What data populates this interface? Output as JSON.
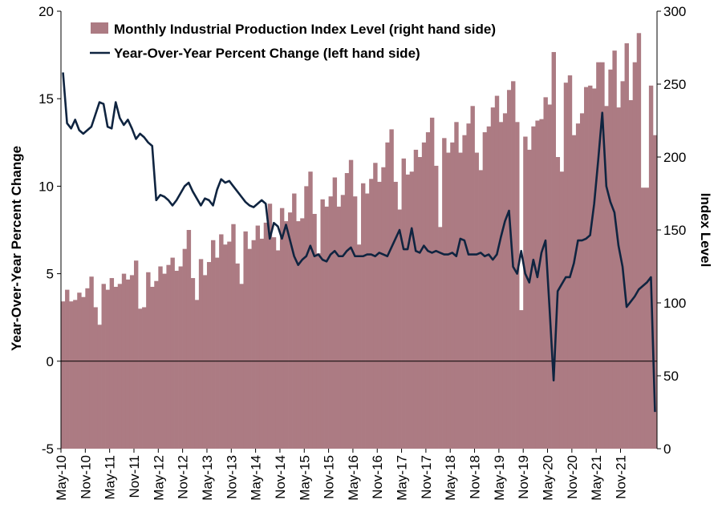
{
  "colors": {
    "bar": "#ac7b83",
    "line": "#0f2440"
  },
  "chart_data": {
    "type": "bar+line",
    "legend": [
      {
        "label": "Monthly Industrial Production Index Level (right hand side)",
        "kind": "bar"
      },
      {
        "label": "Year-Over-Year Percent Change (left hand side)",
        "kind": "line"
      }
    ],
    "legend_position": "top-left",
    "ylabel_left": "Year-Over-Year Percent Change",
    "ylabel_right": "Index Level",
    "ylim_left": [
      -5,
      20
    ],
    "ylim_right": [
      0,
      300
    ],
    "yticks_left": [
      "-5",
      "0",
      "5",
      "10",
      "15",
      "20"
    ],
    "yticks_right": [
      "0",
      "50",
      "100",
      "150",
      "200",
      "250",
      "300"
    ],
    "x_tick_labels": [
      "May-10",
      "Nov-10",
      "May-11",
      "Nov-11",
      "May-12",
      "Nov-12",
      "May-13",
      "Nov-13",
      "May-14",
      "Nov-14",
      "May-15",
      "Nov-15",
      "May-16",
      "Nov-16",
      "May-17",
      "Nov-17",
      "May-18",
      "Nov-18",
      "May-19",
      "Nov-19",
      "May-20",
      "Nov-20",
      "May-21",
      "Nov-21"
    ],
    "grid": false,
    "series": [
      {
        "name": "Monthly Industrial Production Index Level (right hand side)",
        "type": "bar",
        "values": [
          101,
          109,
          101,
          102,
          107,
          104,
          110,
          118,
          97,
          85,
          113,
          109,
          117,
          111,
          113,
          120,
          116,
          119,
          129,
          96,
          97,
          121,
          111,
          115,
          125,
          120,
          126,
          131,
          122,
          125,
          137,
          150,
          117,
          102,
          130,
          119,
          128,
          143,
          131,
          147,
          140,
          142,
          154,
          127,
          113,
          149,
          137,
          143,
          153,
          144,
          155,
          168,
          145,
          136,
          165,
          156,
          162,
          175,
          156,
          158,
          180,
          190,
          161,
          134,
          171,
          166,
          173,
          186,
          166,
          174,
          189,
          198,
          173,
          140,
          182,
          175,
          185,
          196,
          183,
          193,
          210,
          219,
          183,
          164,
          199,
          188,
          190,
          205,
          200,
          210,
          217,
          227,
          194,
          152,
          213,
          203,
          210,
          224,
          203,
          215,
          223,
          235,
          203,
          191,
          217,
          221,
          234,
          242,
          224,
          230,
          246,
          252,
          224,
          95,
          214,
          205,
          221,
          225,
          226,
          241,
          236,
          272,
          200,
          190,
          251,
          256,
          215,
          223,
          230,
          248,
          249,
          247,
          265,
          265,
          235,
          260,
          273,
          234,
          252,
          278,
          239,
          265,
          285,
          179,
          179,
          249,
          215
        ],
        "note_x_start": "May-10"
      },
      {
        "name": "Year-Over-Year Percent Change (left hand side)",
        "type": "line",
        "values": [
          16.5,
          13.6,
          13.3,
          13.8,
          13.2,
          13.0,
          13.2,
          13.4,
          14.1,
          14.8,
          14.7,
          13.4,
          13.3,
          14.8,
          13.9,
          13.5,
          13.8,
          13.3,
          12.7,
          13.0,
          12.8,
          12.5,
          12.3,
          9.2,
          9.5,
          9.4,
          9.2,
          8.9,
          9.2,
          9.6,
          10.0,
          10.2,
          9.7,
          9.3,
          8.9,
          9.3,
          9.2,
          8.9,
          9.8,
          10.4,
          10.2,
          10.3,
          10.0,
          9.7,
          9.4,
          9.1,
          8.9,
          8.8,
          9.0,
          9.2,
          9.0,
          7.0,
          7.9,
          7.7,
          7.0,
          7.8,
          6.9,
          6.0,
          5.5,
          5.8,
          6.0,
          6.6,
          6.0,
          6.1,
          5.8,
          5.7,
          6.1,
          6.3,
          6.0,
          6.0,
          6.3,
          6.5,
          6.0,
          6.0,
          6.0,
          6.1,
          6.1,
          6.0,
          6.2,
          6.1,
          6.0,
          6.5,
          7.0,
          7.5,
          6.4,
          6.4,
          7.6,
          6.3,
          6.2,
          6.6,
          6.3,
          6.2,
          6.3,
          6.2,
          6.1,
          6.1,
          6.2,
          6.0,
          7.0,
          6.9,
          6.1,
          6.1,
          6.1,
          6.2,
          6.0,
          6.1,
          5.8,
          6.1,
          7.1,
          8.0,
          8.6,
          5.4,
          5.0,
          6.3,
          5.0,
          4.5,
          5.8,
          4.8,
          6.2,
          6.9,
          3.0,
          -1.1,
          4.0,
          4.4,
          4.8,
          4.8,
          5.6,
          6.9,
          6.9,
          7.0,
          7.2,
          9.0,
          11.5,
          14.2,
          10.0,
          9.1,
          8.5,
          6.6,
          5.4,
          3.1,
          3.4,
          3.7,
          4.1,
          4.3,
          4.5,
          4.8,
          -2.9
        ],
        "note_x_start": "May-10"
      }
    ]
  }
}
